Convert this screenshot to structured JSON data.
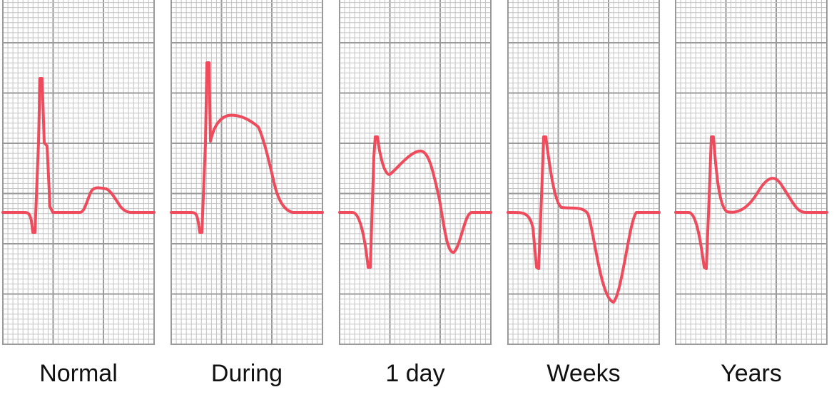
{
  "panels": [
    {
      "label": "Normal"
    },
    {
      "label": "During"
    },
    {
      "label": "1 day"
    },
    {
      "label": "Weeks"
    },
    {
      "label": "Years"
    }
  ]
}
